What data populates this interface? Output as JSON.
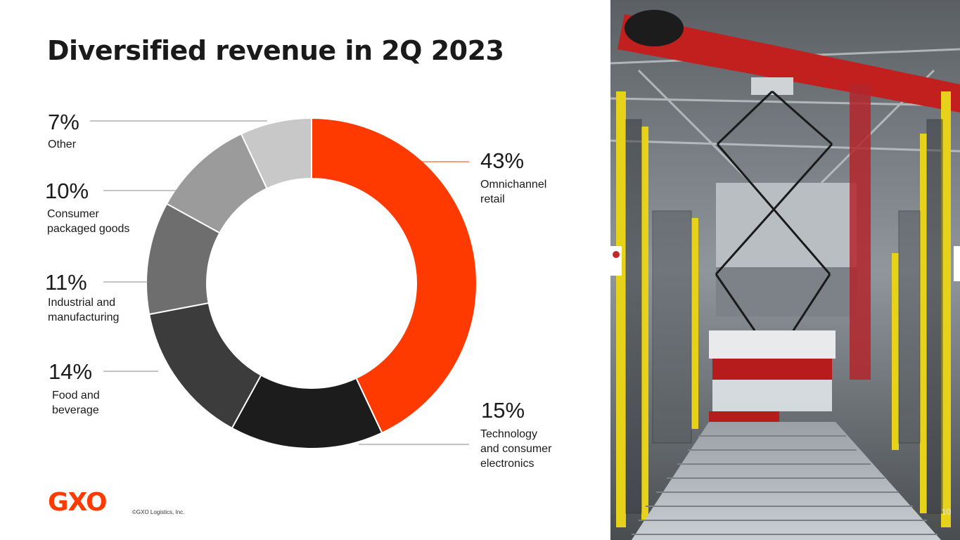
{
  "slide": {
    "title": "Diversified revenue in 2Q 2023",
    "logo_text": "GXO",
    "copyright": "©GXO Logistics, Inc.",
    "page_number": "10"
  },
  "colors": {
    "brand": "#ff3a00",
    "segments": [
      "#ff3a00",
      "#1c1c1c",
      "#3c3c3c",
      "#6e6e6e",
      "#9b9b9b",
      "#c8c8c8"
    ]
  },
  "chart_data": {
    "type": "pie",
    "variant": "donut",
    "title": "Diversified revenue in 2Q 2023",
    "units": "percent of revenue",
    "slices": [
      {
        "label": "Omnichannel retail",
        "lines": [
          "Omnichannel",
          "retail"
        ],
        "value": 43,
        "display": "43%"
      },
      {
        "label": "Technology and consumer electronics",
        "lines": [
          "Technology",
          "and consumer",
          "electronics"
        ],
        "value": 15,
        "display": "15%"
      },
      {
        "label": "Food and beverage",
        "lines": [
          "Food and",
          "beverage"
        ],
        "value": 14,
        "display": "14%"
      },
      {
        "label": "Industrial and manufacturing",
        "lines": [
          "Industrial and",
          "manufacturing"
        ],
        "value": 11,
        "display": "11%"
      },
      {
        "label": "Consumer packaged goods",
        "lines": [
          "Consumer",
          "packaged goods"
        ],
        "value": 10,
        "display": "10%"
      },
      {
        "label": "Other",
        "lines": [
          "Other"
        ],
        "value": 7,
        "display": "7%"
      }
    ]
  }
}
